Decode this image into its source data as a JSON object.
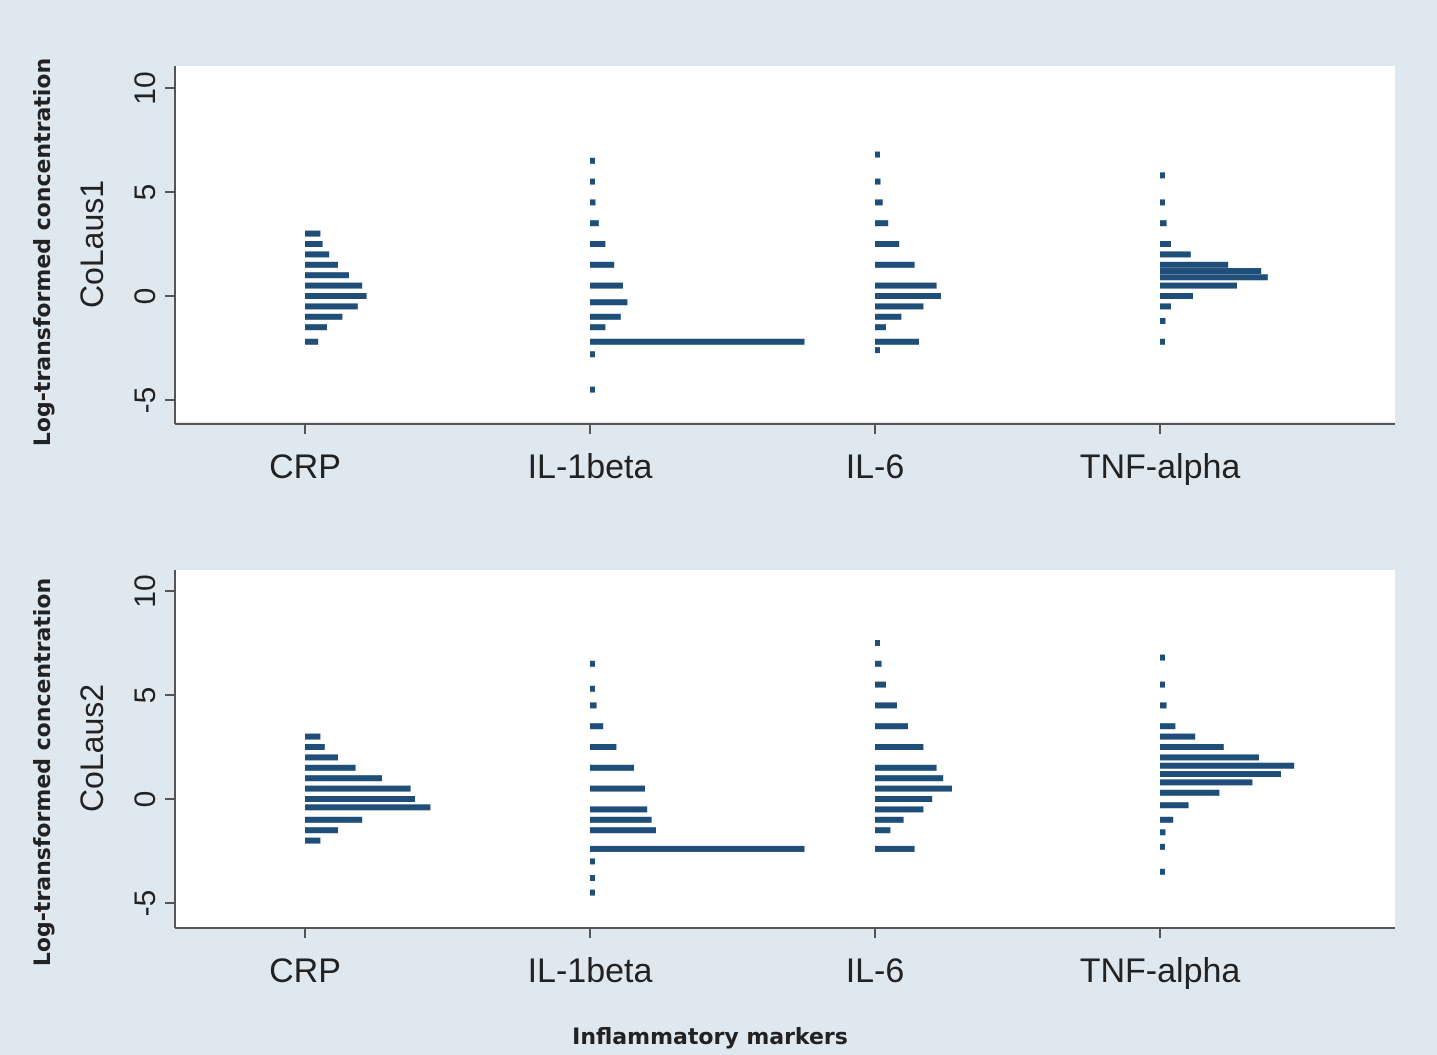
{
  "chart_data": {
    "type": "histogram",
    "ylabel": "Log-transformed concentration",
    "xlabel": "Inflammatory markers",
    "colors": {
      "bars": "#1f4e79",
      "panel_bg": "#ffffff",
      "outer_bg": "#dfe7ef"
    },
    "ylim": [
      -6,
      11
    ],
    "yticks": [
      10,
      5,
      0,
      -5
    ],
    "categories": [
      "CRP",
      "IL-1beta",
      "IL-6",
      "TNF-alpha"
    ],
    "panels": [
      {
        "name": "CoLaus1",
        "series": [
          {
            "name": "CRP",
            "bins": [
              {
                "y": 3.0,
                "len": 0.14
              },
              {
                "y": 2.5,
                "len": 0.16
              },
              {
                "y": 2.0,
                "len": 0.22
              },
              {
                "y": 1.5,
                "len": 0.3
              },
              {
                "y": 1.0,
                "len": 0.4
              },
              {
                "y": 0.5,
                "len": 0.52
              },
              {
                "y": 0.0,
                "len": 0.56
              },
              {
                "y": -0.5,
                "len": 0.48
              },
              {
                "y": -1.0,
                "len": 0.34
              },
              {
                "y": -1.5,
                "len": 0.2
              },
              {
                "y": -2.2,
                "len": 0.12
              }
            ]
          },
          {
            "name": "IL-1beta",
            "bins": [
              {
                "y": 6.5,
                "len": 0.03
              },
              {
                "y": 5.5,
                "len": 0.04
              },
              {
                "y": 4.5,
                "len": 0.05
              },
              {
                "y": 3.5,
                "len": 0.08
              },
              {
                "y": 2.5,
                "len": 0.14
              },
              {
                "y": 1.5,
                "len": 0.22
              },
              {
                "y": 0.5,
                "len": 0.3
              },
              {
                "y": -0.3,
                "len": 0.34
              },
              {
                "y": -1.0,
                "len": 0.28
              },
              {
                "y": -1.5,
                "len": 0.14
              },
              {
                "y": -2.2,
                "len": 1.95
              },
              {
                "y": -2.8,
                "len": 0.03
              },
              {
                "y": -4.5,
                "len": 0.03
              }
            ]
          },
          {
            "name": "IL-6",
            "bins": [
              {
                "y": 6.8,
                "len": 0.03
              },
              {
                "y": 5.5,
                "len": 0.05
              },
              {
                "y": 4.5,
                "len": 0.07
              },
              {
                "y": 3.5,
                "len": 0.12
              },
              {
                "y": 2.5,
                "len": 0.22
              },
              {
                "y": 1.5,
                "len": 0.36
              },
              {
                "y": 0.5,
                "len": 0.56
              },
              {
                "y": 0.0,
                "len": 0.6
              },
              {
                "y": -0.5,
                "len": 0.44
              },
              {
                "y": -1.0,
                "len": 0.24
              },
              {
                "y": -1.5,
                "len": 0.1
              },
              {
                "y": -2.2,
                "len": 0.4
              },
              {
                "y": -2.6,
                "len": 0.03
              }
            ]
          },
          {
            "name": "TNF-alpha",
            "bins": [
              {
                "y": 5.8,
                "len": 0.03
              },
              {
                "y": 4.5,
                "len": 0.04
              },
              {
                "y": 3.5,
                "len": 0.06
              },
              {
                "y": 2.5,
                "len": 0.1
              },
              {
                "y": 2.0,
                "len": 0.28
              },
              {
                "y": 1.5,
                "len": 0.62
              },
              {
                "y": 1.2,
                "len": 0.92
              },
              {
                "y": 0.9,
                "len": 0.98
              },
              {
                "y": 0.5,
                "len": 0.7
              },
              {
                "y": 0.0,
                "len": 0.3
              },
              {
                "y": -0.5,
                "len": 0.1
              },
              {
                "y": -1.2,
                "len": 0.05
              },
              {
                "y": -2.2,
                "len": 0.04
              }
            ]
          }
        ]
      },
      {
        "name": "CoLaus2",
        "series": [
          {
            "name": "CRP",
            "bins": [
              {
                "y": 3.0,
                "len": 0.14
              },
              {
                "y": 2.5,
                "len": 0.18
              },
              {
                "y": 2.0,
                "len": 0.3
              },
              {
                "y": 1.5,
                "len": 0.46
              },
              {
                "y": 1.0,
                "len": 0.7
              },
              {
                "y": 0.5,
                "len": 0.96
              },
              {
                "y": 0.0,
                "len": 1.0
              },
              {
                "y": -0.4,
                "len": 1.14
              },
              {
                "y": -1.0,
                "len": 0.52
              },
              {
                "y": -1.5,
                "len": 0.3
              },
              {
                "y": -2.0,
                "len": 0.14
              }
            ]
          },
          {
            "name": "IL-1beta",
            "bins": [
              {
                "y": 6.5,
                "len": 0.03
              },
              {
                "y": 5.3,
                "len": 0.04
              },
              {
                "y": 4.5,
                "len": 0.06
              },
              {
                "y": 3.5,
                "len": 0.12
              },
              {
                "y": 2.5,
                "len": 0.24
              },
              {
                "y": 1.5,
                "len": 0.4
              },
              {
                "y": 0.5,
                "len": 0.5
              },
              {
                "y": -0.5,
                "len": 0.52
              },
              {
                "y": -1.0,
                "len": 0.56
              },
              {
                "y": -1.5,
                "len": 0.6
              },
              {
                "y": -2.4,
                "len": 1.95
              },
              {
                "y": -3.0,
                "len": 0.03
              },
              {
                "y": -3.8,
                "len": 0.03
              },
              {
                "y": -4.5,
                "len": 0.03
              }
            ]
          },
          {
            "name": "IL-6",
            "bins": [
              {
                "y": 7.5,
                "len": 0.03
              },
              {
                "y": 6.5,
                "len": 0.06
              },
              {
                "y": 5.5,
                "len": 0.1
              },
              {
                "y": 4.5,
                "len": 0.2
              },
              {
                "y": 3.5,
                "len": 0.3
              },
              {
                "y": 2.5,
                "len": 0.44
              },
              {
                "y": 1.5,
                "len": 0.56
              },
              {
                "y": 1.0,
                "len": 0.62
              },
              {
                "y": 0.5,
                "len": 0.7
              },
              {
                "y": 0.0,
                "len": 0.52
              },
              {
                "y": -0.5,
                "len": 0.44
              },
              {
                "y": -1.0,
                "len": 0.26
              },
              {
                "y": -1.5,
                "len": 0.14
              },
              {
                "y": -2.4,
                "len": 0.36
              }
            ]
          },
          {
            "name": "TNF-alpha",
            "bins": [
              {
                "y": 6.8,
                "len": 0.03
              },
              {
                "y": 5.5,
                "len": 0.04
              },
              {
                "y": 4.5,
                "len": 0.06
              },
              {
                "y": 3.5,
                "len": 0.14
              },
              {
                "y": 3.0,
                "len": 0.32
              },
              {
                "y": 2.5,
                "len": 0.58
              },
              {
                "y": 2.0,
                "len": 0.9
              },
              {
                "y": 1.6,
                "len": 1.22
              },
              {
                "y": 1.2,
                "len": 1.1
              },
              {
                "y": 0.8,
                "len": 0.84
              },
              {
                "y": 0.3,
                "len": 0.54
              },
              {
                "y": -0.3,
                "len": 0.26
              },
              {
                "y": -1.0,
                "len": 0.12
              },
              {
                "y": -1.6,
                "len": 0.05
              },
              {
                "y": -2.3,
                "len": 0.03
              },
              {
                "y": -3.5,
                "len": 0.03
              }
            ]
          }
        ]
      }
    ]
  }
}
